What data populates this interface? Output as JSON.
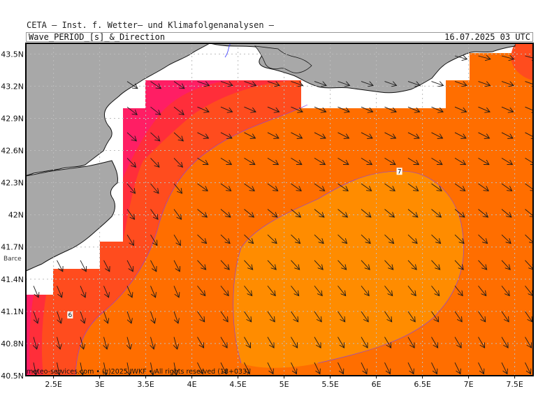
{
  "header": {
    "institute": "CETA – Inst. f. Wetter– und Klimafolgenanalysen –",
    "product": "Wave_PERIOD_[s]_&_Direction",
    "valid_time": "16.07.2025 03 UTC"
  },
  "map": {
    "x_ticks": [
      "2.5E",
      "3E",
      "3.5E",
      "4E",
      "4.5E",
      "5E",
      "5.5E",
      "6E",
      "6.5E",
      "7E",
      "7.5E"
    ],
    "x_values": [
      2.5,
      3.0,
      3.5,
      4.0,
      4.5,
      5.0,
      5.5,
      6.0,
      6.5,
      7.0,
      7.5
    ],
    "y_ticks": [
      "43.5N",
      "43.2N",
      "42.9N",
      "42.6N",
      "42.3N",
      "42N",
      "41.7N",
      "41.4N",
      "41.1N",
      "40.8N",
      "40.5N"
    ],
    "y_values": [
      43.5,
      43.2,
      42.9,
      42.6,
      42.3,
      42.0,
      41.7,
      41.4,
      41.1,
      40.8,
      40.5
    ],
    "lon_range": [
      2.2,
      7.7
    ],
    "lat_range": [
      40.5,
      43.6
    ],
    "contour_labels": [
      {
        "text": "7",
        "lon": 6.25,
        "lat": 42.4
      },
      {
        "text": "6",
        "lon": 2.68,
        "lat": 41.06
      }
    ],
    "city_label": "Barce",
    "wave_direction": "north-west to south-east",
    "colors": {
      "land": "#a8a8a8",
      "period_5": "#ff1e64",
      "period_5_5": "#ff2e3a",
      "period_6": "#ff4c1e",
      "period_6_5": "#ff6e00",
      "period_7": "#ff8c00",
      "grid": "#bdbdbd",
      "arrows": "#1a1a1a"
    }
  },
  "footer": {
    "credit": "meteo-services.com • (c)2025 IWKF • All rights reserved (18+033)"
  }
}
